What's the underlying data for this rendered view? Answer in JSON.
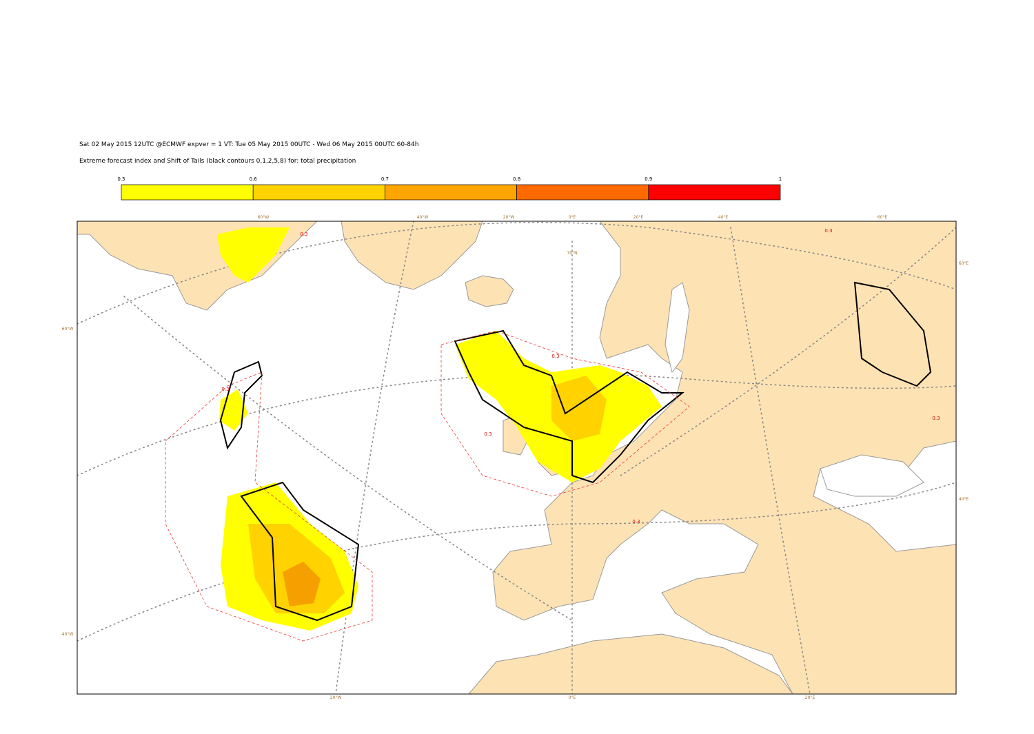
{
  "header": {
    "line1": "Sat 02 May 2015 12UTC @ECMWF expver = 1 VT: Tue 05 May 2015 00UTC - Wed 06 May 2015 00UTC  60-84h",
    "line2": "Extreme forecast index and Shift of Tails (black contours 0,1,2,5,8) for: total precipitation"
  },
  "colorbar": {
    "ticks": [
      0.5,
      0.6,
      0.7,
      0.8,
      0.9,
      1
    ],
    "colors": [
      "#ffff00",
      "#ffd200",
      "#ffa500",
      "#ff6a00",
      "#ff0000"
    ]
  },
  "map": {
    "top_labels": [
      "60°W",
      "40°W",
      "20°W",
      "0°E",
      "20°E",
      "40°E",
      "60°E"
    ],
    "bottom_labels": [
      "20°W",
      "0°E",
      "20°E"
    ],
    "left_labels": [
      "60°W",
      "40°W"
    ],
    "right_labels": [
      "60°E",
      "40°E"
    ],
    "inner_labels": [
      "70°N"
    ],
    "contour_labels": [
      "0.3",
      "0.3",
      "0.3",
      "0.3",
      "0.3",
      "0.3",
      "0.3"
    ]
  }
}
